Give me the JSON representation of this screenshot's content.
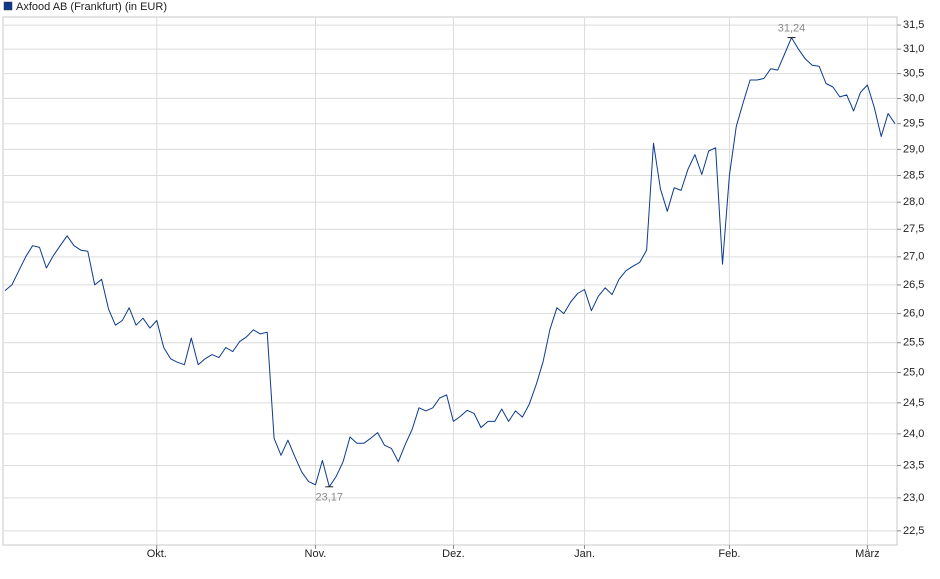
{
  "chart_data": {
    "type": "line",
    "series": [
      {
        "name": "Axfood AB (Frankfurt) (in EUR)",
        "color": "#0d3b8c",
        "values": [
          26.4,
          26.5,
          26.75,
          27.0,
          27.2,
          27.17,
          26.8,
          27.02,
          27.2,
          27.38,
          27.2,
          27.12,
          27.1,
          26.5,
          26.6,
          26.08,
          25.8,
          25.88,
          26.1,
          25.8,
          25.92,
          25.75,
          25.88,
          25.42,
          25.23,
          25.17,
          25.13,
          25.58,
          25.13,
          25.23,
          25.3,
          25.25,
          25.42,
          25.35,
          25.52,
          25.6,
          25.72,
          25.65,
          25.68,
          23.93,
          23.66,
          23.9,
          23.64,
          23.4,
          23.25,
          23.2,
          23.58,
          23.17,
          23.33,
          23.56,
          23.95,
          23.85,
          23.85,
          23.93,
          24.02,
          23.82,
          23.77,
          23.56,
          23.83,
          24.07,
          24.42,
          24.37,
          24.42,
          24.58,
          24.63,
          24.2,
          24.28,
          24.38,
          24.33,
          24.1,
          24.2,
          24.2,
          24.4,
          24.2,
          24.37,
          24.27,
          24.48,
          24.8,
          25.18,
          25.73,
          26.1,
          26.0,
          26.2,
          26.35,
          26.42,
          26.05,
          26.3,
          26.45,
          26.33,
          26.6,
          26.75,
          26.83,
          26.9,
          27.12,
          29.12,
          28.25,
          27.83,
          28.27,
          28.22,
          28.62,
          28.9,
          28.52,
          28.97,
          29.03,
          26.87,
          28.5,
          29.45,
          29.92,
          30.37,
          30.37,
          30.4,
          30.6,
          30.57,
          30.9,
          31.24,
          31.0,
          30.8,
          30.67,
          30.65,
          30.3,
          30.23,
          30.03,
          30.07,
          29.75,
          30.12,
          30.27,
          29.82,
          29.25,
          29.7,
          29.5
        ]
      }
    ],
    "xlim": [
      0,
      129
    ],
    "xticks": [
      {
        "value": 22,
        "label": "Okt."
      },
      {
        "value": 45,
        "label": "Nov."
      },
      {
        "value": 65,
        "label": "Dez."
      },
      {
        "value": 84,
        "label": "Jan."
      },
      {
        "value": 105,
        "label": "Feb."
      },
      {
        "value": 125,
        "label": "März"
      }
    ],
    "ylim": [
      22.29,
      31.67
    ],
    "log_scale": true,
    "yticks": [
      {
        "value": 22.5,
        "label": "22,5"
      },
      {
        "value": 23,
        "label": "23,0"
      },
      {
        "value": 23.5,
        "label": "23,5"
      },
      {
        "value": 24,
        "label": "24,0"
      },
      {
        "value": 24.5,
        "label": "24,5"
      },
      {
        "value": 25,
        "label": "25,0"
      },
      {
        "value": 25.5,
        "label": "25,5"
      },
      {
        "value": 26,
        "label": "26,0"
      },
      {
        "value": 26.5,
        "label": "26,5"
      },
      {
        "value": 27,
        "label": "27,0"
      },
      {
        "value": 27.5,
        "label": "27,5"
      },
      {
        "value": 28,
        "label": "28,0"
      },
      {
        "value": 28.5,
        "label": "28,5"
      },
      {
        "value": 29,
        "label": "29,0"
      },
      {
        "value": 29.5,
        "label": "29,5"
      },
      {
        "value": 30,
        "label": "30,0"
      },
      {
        "value": 30.5,
        "label": "30,5"
      },
      {
        "value": 31,
        "label": "31,0"
      },
      {
        "value": 31.5,
        "label": "31,5"
      }
    ],
    "grid": true,
    "annotations": [
      {
        "x": 114,
        "label": "31,24",
        "position": "above"
      },
      {
        "x": 47,
        "label": "23,17",
        "position": "below"
      }
    ]
  }
}
